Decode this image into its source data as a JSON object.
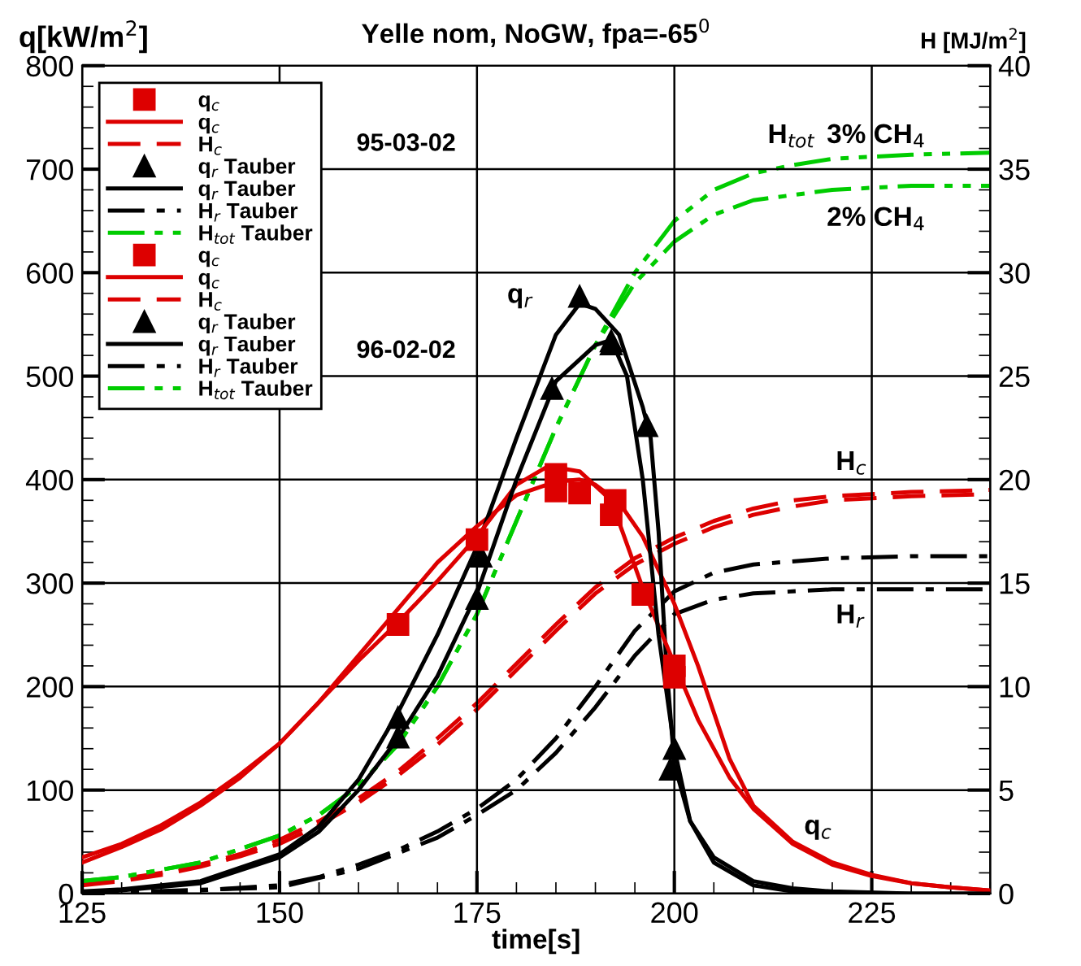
{
  "chart_data": {
    "type": "line",
    "title": "Yelle nom, NoGW, fpa=-65$^{0}$",
    "xlabel": "time[s]",
    "ylabel": "q[kW/m$^{2}$]",
    "y2label": "H [MJ/m$^{2}$]",
    "xlim": [
      125,
      240
    ],
    "xticks": [
      125,
      150,
      175,
      200,
      225
    ],
    "ylim": [
      0,
      800
    ],
    "yticks": [
      0,
      100,
      200,
      300,
      400,
      500,
      600,
      700,
      800
    ],
    "y2lim": [
      0,
      40
    ],
    "y2ticks": [
      0,
      5,
      10,
      15,
      20,
      25,
      30,
      35,
      40
    ],
    "grid": true,
    "legend": "top left",
    "series": [
      {
        "name": "q$_{c}$",
        "type": "scatter",
        "marker": "square",
        "color": "#dd0000",
        "x": [
          185,
          188,
          192,
          196,
          200
        ],
        "values": [
          389,
          387,
          366,
          289,
          209
        ]
      },
      {
        "name": "q$_{c}$",
        "line_style": "solid",
        "color": "#dd0000",
        "x": [
          125,
          130,
          135,
          140,
          145,
          150,
          155,
          160,
          165,
          170,
          175,
          180,
          185,
          188,
          190,
          193,
          196,
          200,
          203,
          207,
          210,
          215,
          220,
          225,
          230,
          235,
          240
        ],
        "values": [
          35,
          48,
          66,
          88,
          115,
          145,
          185,
          230,
          275,
          320,
          355,
          385,
          398,
          400,
          395,
          378,
          345,
          280,
          220,
          130,
          85,
          50,
          30,
          18,
          10,
          6,
          3
        ]
      },
      {
        "name": "H$_{c}$",
        "line_style": "dashed",
        "axis": "y2",
        "color": "#dd0000",
        "x": [
          125,
          130,
          135,
          140,
          145,
          150,
          155,
          160,
          165,
          170,
          175,
          180,
          185,
          190,
          195,
          200,
          205,
          210,
          215,
          220,
          230,
          240
        ],
        "values": [
          0.5,
          0.7,
          1.0,
          1.4,
          1.9,
          2.6,
          3.5,
          4.6,
          5.9,
          7.5,
          9.2,
          11.1,
          13.0,
          14.8,
          16.2,
          17.2,
          18.0,
          18.6,
          19.0,
          19.2,
          19.4,
          19.5
        ]
      },
      {
        "name": "q$_{r}$ Tauber",
        "type": "scatter",
        "marker": "triangle",
        "color": "#000000",
        "x": [
          165,
          175.5,
          188,
          192,
          196.5,
          199.5
        ],
        "values": [
          170,
          326,
          577,
          531,
          452,
          120
        ]
      },
      {
        "name": "q$_{r}$ Tauber",
        "line_style": "solid",
        "color": "#000000",
        "x": [
          125,
          130,
          140,
          150,
          155,
          160,
          165,
          170,
          175,
          180,
          185,
          188,
          190,
          193,
          196,
          197,
          198,
          199,
          200,
          202,
          205,
          210,
          215,
          220,
          230,
          240
        ],
        "values": [
          2,
          4,
          12,
          38,
          65,
          110,
          175,
          250,
          335,
          440,
          540,
          570,
          565,
          540,
          470,
          440,
          350,
          220,
          125,
          70,
          35,
          12,
          5,
          2,
          0,
          0
        ]
      },
      {
        "name": "H$_{r}$ Tauber",
        "line_style": "dashdot",
        "axis": "y2",
        "color": "#000000",
        "x": [
          125,
          130,
          140,
          150,
          155,
          160,
          165,
          170,
          175,
          180,
          185,
          190,
          195,
          200,
          205,
          210,
          220,
          230,
          240
        ],
        "values": [
          0,
          0.05,
          0.15,
          0.4,
          0.8,
          1.4,
          2.1,
          3.0,
          4.1,
          5.5,
          7.5,
          10.0,
          12.7,
          14.6,
          15.5,
          15.9,
          16.2,
          16.3,
          16.3
        ]
      },
      {
        "name": "H$_{tot}$ Tauber",
        "line_style": "dashdotdot",
        "axis": "y2",
        "color": "#00cc00",
        "x": [
          125,
          130,
          140,
          150,
          155,
          160,
          165,
          170,
          175,
          180,
          185,
          190,
          195,
          200,
          205,
          210,
          215,
          220,
          230,
          240
        ],
        "values": [
          0.6,
          0.8,
          1.5,
          2.8,
          3.8,
          5.2,
          7.2,
          10,
          13.5,
          18,
          22.5,
          26.5,
          30,
          32.5,
          34,
          34.8,
          35.2,
          35.5,
          35.7,
          35.8
        ]
      },
      {
        "name": "q$_{c}$",
        "type": "scatter",
        "marker": "square",
        "color": "#dd0000",
        "x": [
          165,
          175,
          185,
          192.5,
          200
        ],
        "values": [
          260,
          342,
          405,
          380,
          220
        ]
      },
      {
        "name": "q$_{c}$",
        "line_style": "solid",
        "color": "#dd0000",
        "x": [
          125,
          130,
          135,
          140,
          145,
          150,
          155,
          160,
          165,
          170,
          175,
          180,
          184,
          188,
          192,
          196,
          200,
          203,
          207,
          210,
          215,
          220,
          225,
          230,
          235,
          240
        ],
        "values": [
          30,
          45,
          62,
          85,
          112,
          145,
          185,
          225,
          262,
          302,
          345,
          395,
          413,
          408,
          380,
          295,
          222,
          168,
          112,
          82,
          48,
          28,
          17,
          10,
          6,
          3
        ]
      },
      {
        "name": "H$_{c}$",
        "line_style": "dashed",
        "axis": "y2",
        "color": "#dd0000",
        "x": [
          125,
          130,
          135,
          140,
          145,
          150,
          155,
          160,
          165,
          170,
          175,
          180,
          185,
          190,
          195,
          200,
          205,
          210,
          215,
          220,
          230,
          240
        ],
        "values": [
          0.4,
          0.6,
          0.9,
          1.3,
          1.8,
          2.4,
          3.3,
          4.4,
          5.7,
          7.2,
          8.9,
          10.8,
          12.7,
          14.5,
          15.9,
          16.9,
          17.7,
          18.3,
          18.7,
          19.0,
          19.2,
          19.3
        ]
      },
      {
        "name": "q$_{r}$ Tauber",
        "type": "scatter",
        "marker": "triangle",
        "color": "#000000",
        "x": [
          165,
          175,
          184.5,
          192,
          200
        ],
        "values": [
          151,
          285,
          488,
          534,
          140
        ]
      },
      {
        "name": "q$_{r}$ Tauber",
        "line_style": "solid",
        "color": "#000000",
        "x": [
          125,
          130,
          140,
          150,
          155,
          160,
          165,
          170,
          175,
          180,
          185,
          190,
          192,
          194,
          196,
          198,
          200,
          202,
          205,
          210,
          215,
          220,
          240
        ],
        "values": [
          1,
          3,
          10,
          35,
          60,
          100,
          150,
          210,
          290,
          400,
          495,
          530,
          535,
          500,
          400,
          250,
          140,
          70,
          30,
          8,
          2,
          0,
          0
        ]
      },
      {
        "name": "H$_{r}$ Tauber",
        "line_style": "dashdot",
        "axis": "y2",
        "color": "#000000",
        "x": [
          125,
          150,
          160,
          170,
          175,
          180,
          185,
          190,
          195,
          200,
          205,
          210,
          220,
          240
        ],
        "values": [
          0,
          0.3,
          1.2,
          2.7,
          3.8,
          5.0,
          6.8,
          9.0,
          11.5,
          13.5,
          14.2,
          14.5,
          14.7,
          14.7
        ]
      },
      {
        "name": "H$_{tot}$ Tauber",
        "line_style": "dashdotdot",
        "axis": "y2",
        "color": "#00cc00",
        "x": [
          125,
          130,
          140,
          150,
          155,
          160,
          165,
          170,
          175,
          180,
          185,
          190,
          195,
          200,
          205,
          210,
          220,
          230,
          240
        ],
        "values": [
          0.6,
          0.8,
          1.5,
          2.8,
          3.8,
          5.2,
          7.2,
          10,
          13.5,
          18,
          22.5,
          26.5,
          29.5,
          31.5,
          32.8,
          33.5,
          34,
          34.2,
          34.2
        ]
      }
    ],
    "annotations": [
      "95-03-02",
      "96-02-02",
      "q$_{r}$",
      "H$_{tot}$",
      "3% CH$_{4}$",
      "2% CH$_{4}$",
      "H$_{c}$",
      "H$_{r}$",
      "q$_{c}$"
    ]
  }
}
